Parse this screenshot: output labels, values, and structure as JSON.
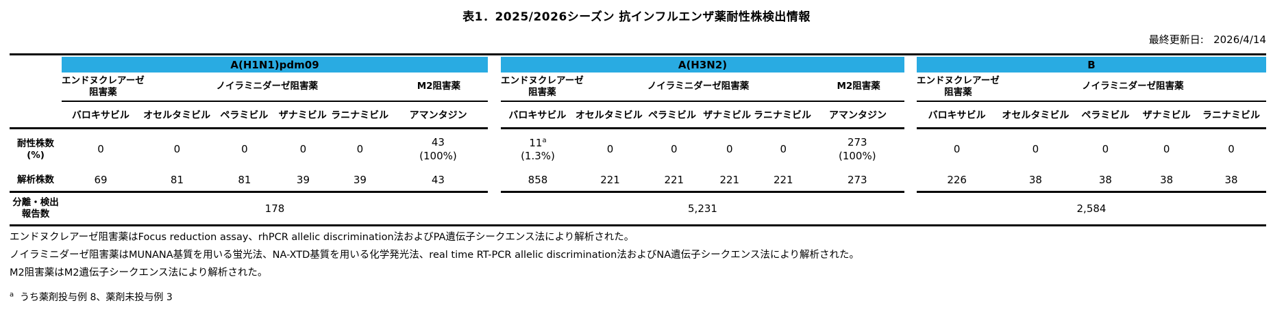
{
  "colors": {
    "header_band": "#29abe2",
    "text": "#000000",
    "line": "#000000"
  },
  "title": "表1．2025/2026シーズン 抗インフルエンザ薬耐性株検出情報",
  "last_updated": {
    "label": "最終更新日:",
    "value": "2026/4/14"
  },
  "row_labels": {
    "resistant": [
      "耐性株数",
      "(%)"
    ],
    "analyzed": [
      "解析株数"
    ],
    "reported": [
      "分離・検出",
      "報告数"
    ]
  },
  "sections": [
    {
      "virus": "A(H1N1)pdm09",
      "drug_classes": [
        {
          "lines": [
            "エンドヌクレアーゼ",
            "阻害薬"
          ],
          "span": 1
        },
        {
          "lines": [
            "ノイラミニダーゼ阻害薬"
          ],
          "span": 4
        },
        {
          "lines": [
            "M2阻害薬"
          ],
          "span": 1
        }
      ],
      "drugs": [
        "バロキサビル",
        "オセルタミビル",
        "ペラミビル",
        "ザナミビル",
        "ラニナミビル",
        "アマンタジン"
      ],
      "resistant": [
        {
          "count": "0"
        },
        {
          "count": "0"
        },
        {
          "count": "0"
        },
        {
          "count": "0"
        },
        {
          "count": "0"
        },
        {
          "count": "43",
          "pct": "(100%)"
        }
      ],
      "analyzed": [
        "69",
        "81",
        "81",
        "39",
        "39",
        "43"
      ],
      "reported": "178"
    },
    {
      "virus": "A(H3N2)",
      "drug_classes": [
        {
          "lines": [
            "エンドヌクレアーゼ",
            "阻害薬"
          ],
          "span": 1
        },
        {
          "lines": [
            "ノイラミニダーゼ阻害薬"
          ],
          "span": 4
        },
        {
          "lines": [
            "M2阻害薬"
          ],
          "span": 1
        }
      ],
      "drugs": [
        "バロキサビル",
        "オセルタミビル",
        "ペラミビル",
        "ザナミビル",
        "ラニナミビル",
        "アマンタジン"
      ],
      "resistant": [
        {
          "count": "11",
          "sup": "a",
          "pct": "(1.3%)"
        },
        {
          "count": "0"
        },
        {
          "count": "0"
        },
        {
          "count": "0"
        },
        {
          "count": "0"
        },
        {
          "count": "273",
          "pct": "(100%)"
        }
      ],
      "analyzed": [
        "858",
        "221",
        "221",
        "221",
        "221",
        "273"
      ],
      "reported": "5,231"
    },
    {
      "virus": "B",
      "drug_classes": [
        {
          "lines": [
            "エンドヌクレアーゼ",
            "阻害薬"
          ],
          "span": 1
        },
        {
          "lines": [
            "ノイラミニダーゼ阻害薬"
          ],
          "span": 4
        }
      ],
      "drugs": [
        "バロキサビル",
        "オセルタミビル",
        "ペラミビル",
        "ザナミビル",
        "ラニナミビル"
      ],
      "resistant": [
        {
          "count": "0"
        },
        {
          "count": "0"
        },
        {
          "count": "0"
        },
        {
          "count": "0"
        },
        {
          "count": "0"
        }
      ],
      "analyzed": [
        "226",
        "38",
        "38",
        "38",
        "38"
      ],
      "reported": "2,584"
    }
  ],
  "footnotes": [
    "エンドヌクレアーゼ阻害薬はFocus reduction assay、rhPCR allelic discrimination法およびPA遺伝子シークエンス法により解析された。",
    "ノイラミニダーゼ阻害薬はMUNANA基質を用いる蛍光法、NA-XTD基質を用いる化学発光法、real time RT-PCR allelic discrimination法およびNA遺伝子シークエンス法により解析された。",
    "M2阻害薬はM2遺伝子シークエンス法により解析された。"
  ],
  "annotation": {
    "sup": "a",
    "text": "うち薬剤投与例 8、薬剤未投与例 3"
  }
}
